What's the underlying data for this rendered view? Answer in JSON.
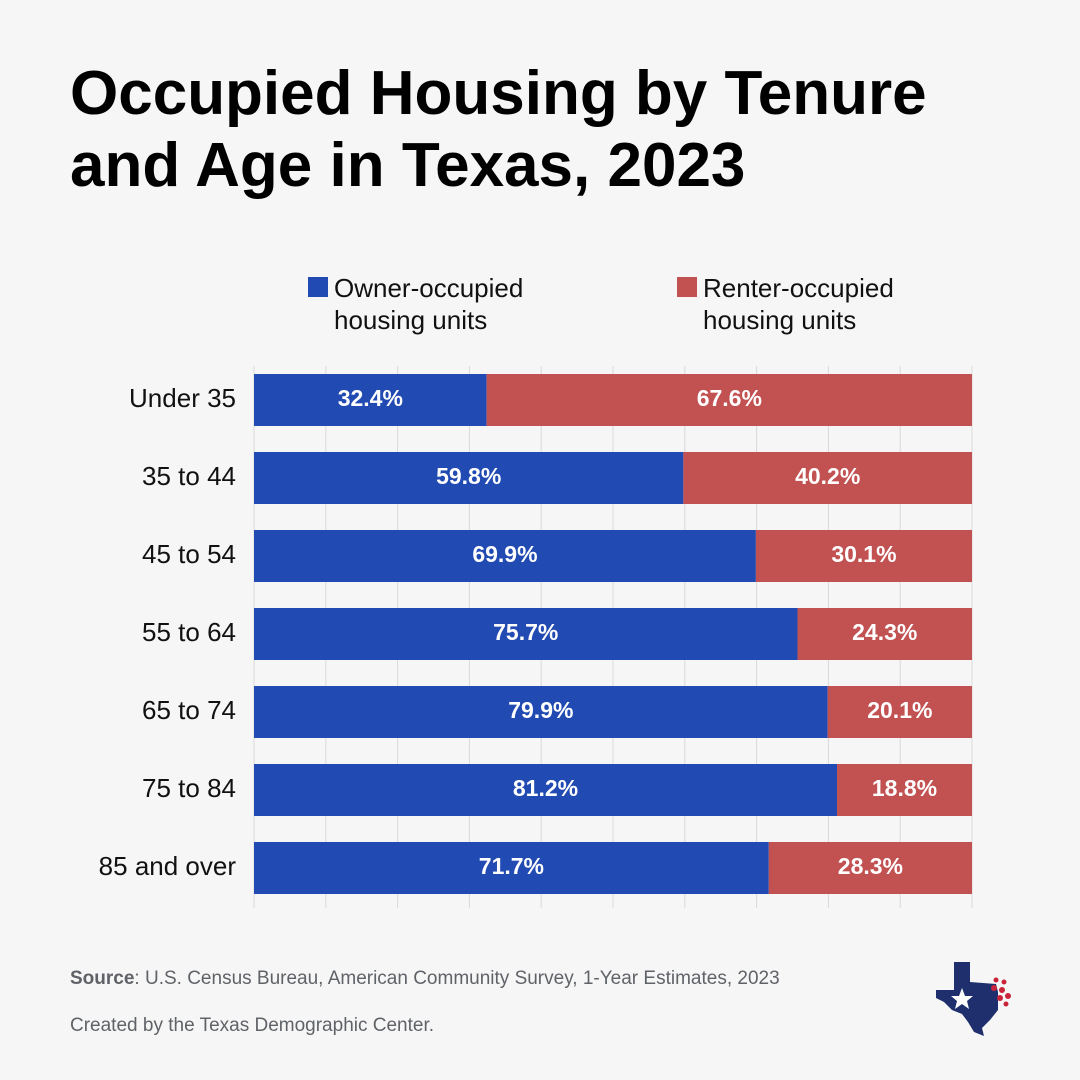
{
  "title": "Occupied Housing by Tenure and Age in Texas, 2023",
  "colors": {
    "owner": "#214bb2",
    "renter": "#c25152",
    "grid": "#d9d9d9",
    "background": "#f7f6f6"
  },
  "chart_data": {
    "type": "bar",
    "orientation": "horizontal",
    "stacked": true,
    "title": "Occupied Housing by Tenure and Age in Texas, 2023",
    "categories": [
      "Under 35",
      "35 to 44",
      "45 to 54",
      "55 to 64",
      "65 to 74",
      "75 to 84",
      "85 and over"
    ],
    "series": [
      {
        "name": "Owner-occupied housing units",
        "values": [
          32.4,
          59.8,
          69.9,
          75.7,
          79.9,
          81.2,
          71.7
        ],
        "labels": [
          "32.4%",
          "59.8%",
          "69.9%",
          "75.7%",
          "79.9%",
          "81.2%",
          "71.7%"
        ]
      },
      {
        "name": "Renter-occupied housing units",
        "values": [
          67.6,
          40.2,
          30.1,
          24.3,
          20.1,
          18.8,
          28.3
        ],
        "labels": [
          "67.6%",
          "40.2%",
          "30.1%",
          "24.3%",
          "20.1%",
          "18.8%",
          "28.3%"
        ]
      }
    ],
    "xlim": [
      0,
      100
    ],
    "grid": true,
    "legend": "top"
  },
  "footer": {
    "source_label": "Source",
    "source_text": ": U.S. Census Bureau, American Community Survey, 1-Year Estimates, 2023",
    "credit": "Created by the Texas Demographic Center."
  },
  "logo": {
    "icon": "texas-star-logo"
  }
}
